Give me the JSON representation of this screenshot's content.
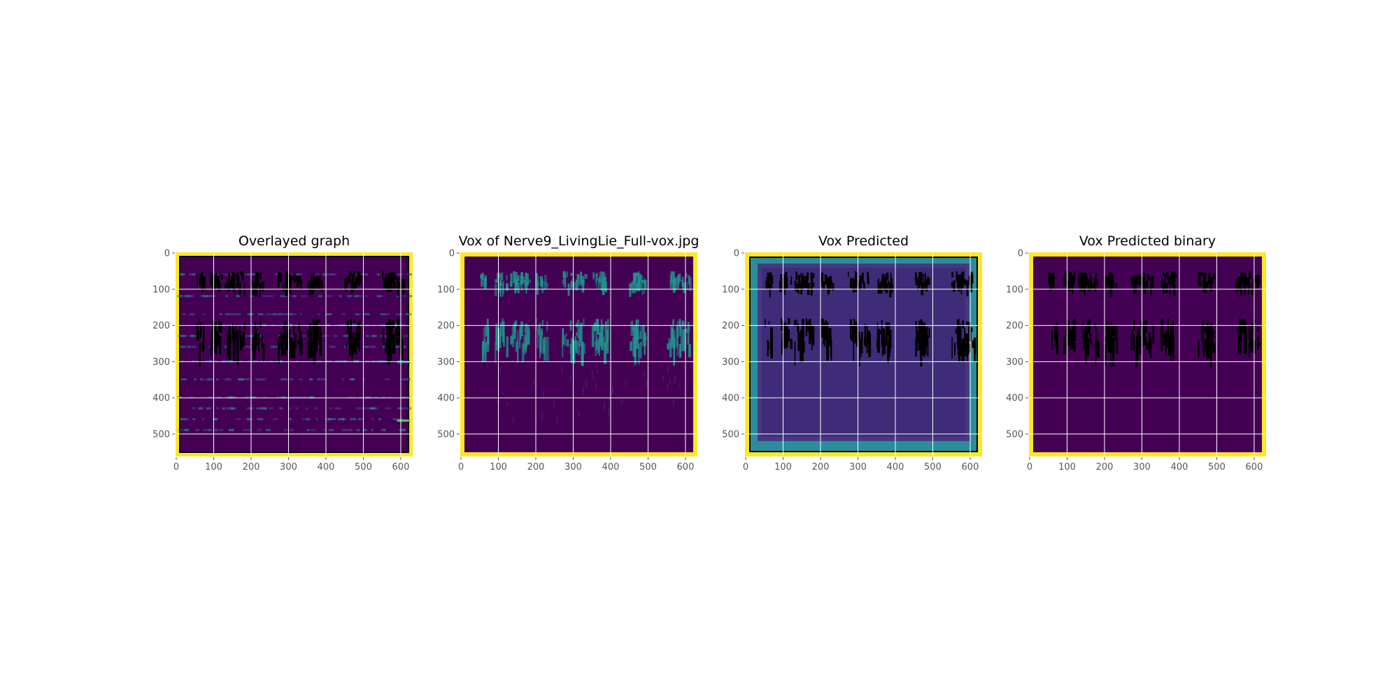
{
  "figure": {
    "background": "#ffffff"
  },
  "colors": {
    "viridis_low": "#440154",
    "viridis_mid": "#3b528b",
    "viridis_teal": "#21918c",
    "viridis_green": "#5ec962",
    "viridis_high": "#fde725",
    "grid": "#ffffff",
    "mark": "#000000",
    "tick_text": "#555555",
    "title_text": "#000000"
  },
  "chart_data": [
    {
      "type": "heatmap",
      "title": "Overlayed graph",
      "xlabel": "",
      "ylabel": "",
      "xlim": [
        0,
        630
      ],
      "ylim": [
        560,
        0
      ],
      "x_ticks": [
        0,
        100,
        200,
        300,
        400,
        500,
        600
      ],
      "y_ticks": [
        0,
        100,
        200,
        300,
        400,
        500
      ],
      "grid": true,
      "image_background": "viridis-dark-purple",
      "border": "yellow",
      "overlay_marks": "black vertical streaks",
      "horizontal_bands_y": [
        60,
        120,
        170,
        200,
        230,
        260,
        300,
        350,
        400,
        430,
        460,
        490
      ]
    },
    {
      "type": "heatmap",
      "title": "Vox of Nerve9_LivingLie_Full-vox.jpg",
      "xlabel": "",
      "ylabel": "",
      "xlim": [
        0,
        630
      ],
      "ylim": [
        560,
        0
      ],
      "x_ticks": [
        0,
        100,
        200,
        300,
        400,
        500,
        600
      ],
      "y_ticks": [
        0,
        100,
        200,
        300,
        400,
        500
      ],
      "grid": true,
      "image_background": "viridis-dark-purple",
      "border": "yellow",
      "overlay_marks": "teal vertical streaks"
    },
    {
      "type": "heatmap",
      "title": "Vox Predicted",
      "xlabel": "",
      "ylabel": "",
      "xlim": [
        0,
        630
      ],
      "ylim": [
        560,
        0
      ],
      "x_ticks": [
        0,
        100,
        200,
        300,
        400,
        500,
        600
      ],
      "y_ticks": [
        0,
        100,
        200,
        300,
        400,
        500
      ],
      "grid": true,
      "image_background": "viridis-blue-purple with teal edges",
      "border": "yellow",
      "overlay_marks": "black vertical streaks"
    },
    {
      "type": "heatmap",
      "title": "Vox Predicted binary",
      "xlabel": "",
      "ylabel": "",
      "xlim": [
        0,
        630
      ],
      "ylim": [
        560,
        0
      ],
      "x_ticks": [
        0,
        100,
        200,
        300,
        400,
        500,
        600
      ],
      "y_ticks": [
        0,
        100,
        200,
        300,
        400,
        500
      ],
      "grid": true,
      "image_background": "viridis-dark-purple",
      "border": "yellow",
      "overlay_marks": "black vertical streaks"
    }
  ],
  "streaks": {
    "x_centers": [
      60,
      100,
      110,
      140,
      150,
      170,
      210,
      220,
      280,
      300,
      320,
      360,
      370,
      380,
      460,
      470,
      480,
      560,
      570,
      580,
      600
    ],
    "row1_y": [
      50,
      110
    ],
    "row2_y": [
      180,
      300
    ]
  }
}
